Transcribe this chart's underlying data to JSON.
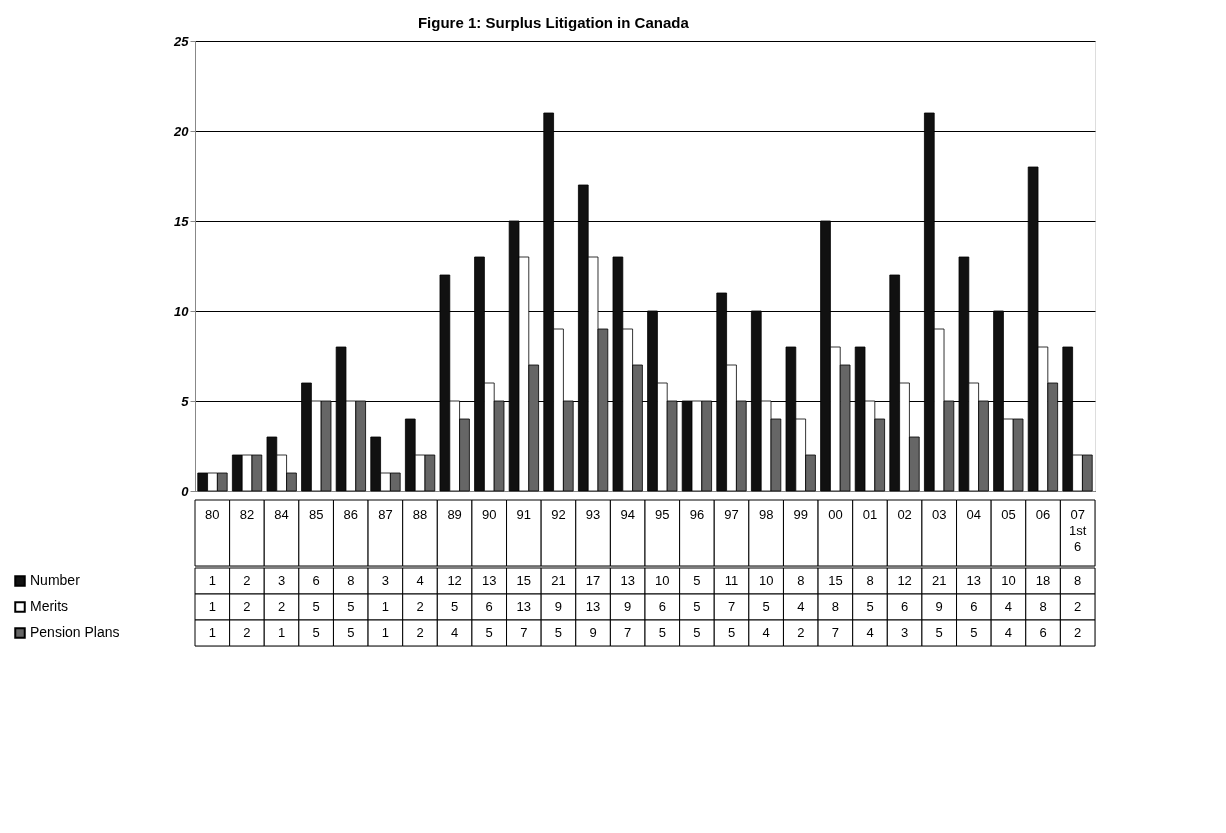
{
  "chart_data": {
    "type": "bar",
    "title": "Figure 1: Surplus Litigation in Canada",
    "categories": [
      "80",
      "82",
      "84",
      "85",
      "86",
      "87",
      "88",
      "89",
      "90",
      "91",
      "92",
      "93",
      "94",
      "95",
      "96",
      "97",
      "98",
      "99",
      "00",
      "01",
      "02",
      "03",
      "04",
      "05",
      "06",
      "07 1st 6"
    ],
    "series": [
      {
        "name": "Number",
        "color": "#111111",
        "values": [
          1,
          2,
          3,
          6,
          8,
          3,
          4,
          12,
          13,
          15,
          21,
          17,
          13,
          10,
          5,
          11,
          10,
          8,
          15,
          8,
          12,
          21,
          13,
          10,
          18,
          8
        ]
      },
      {
        "name": "Merits",
        "color": "#ffffff",
        "values": [
          1,
          2,
          2,
          5,
          5,
          1,
          2,
          5,
          6,
          13,
          9,
          13,
          9,
          6,
          5,
          7,
          5,
          4,
          8,
          5,
          6,
          9,
          6,
          4,
          8,
          2
        ]
      },
      {
        "name": "Pension Plans",
        "color": "#666666",
        "values": [
          1,
          2,
          1,
          5,
          5,
          1,
          2,
          4,
          5,
          7,
          5,
          9,
          7,
          5,
          5,
          5,
          4,
          2,
          7,
          4,
          3,
          5,
          5,
          4,
          6,
          2
        ]
      }
    ],
    "ylim": [
      0,
      25
    ],
    "yticks": [
      0,
      5,
      10,
      15,
      20,
      25
    ],
    "grid": "y",
    "legend": "bottom",
    "data_labels": true
  }
}
